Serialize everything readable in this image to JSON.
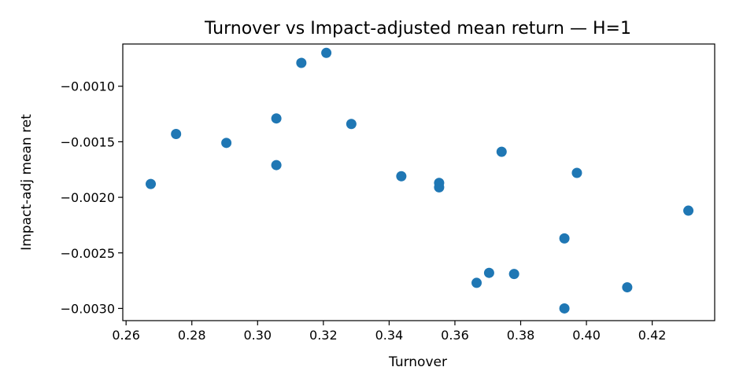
{
  "chart_data": {
    "type": "scatter",
    "title": "Turnover vs Impact-adjusted mean return — H=1",
    "xlabel": "Turnover",
    "ylabel": "Impact-adj mean ret",
    "xlim": [
      0.259,
      0.439
    ],
    "ylim": [
      -0.00311,
      -0.00062
    ],
    "xticks": [
      {
        "value": 0.26,
        "label": "0.26"
      },
      {
        "value": 0.28,
        "label": "0.28"
      },
      {
        "value": 0.3,
        "label": "0.30"
      },
      {
        "value": 0.32,
        "label": "0.32"
      },
      {
        "value": 0.34,
        "label": "0.34"
      },
      {
        "value": 0.36,
        "label": "0.36"
      },
      {
        "value": 0.38,
        "label": "0.38"
      },
      {
        "value": 0.4,
        "label": "0.40"
      },
      {
        "value": 0.42,
        "label": "0.42"
      }
    ],
    "yticks": [
      {
        "value": -0.001,
        "label": "−0.0010"
      },
      {
        "value": -0.0015,
        "label": "−0.0015"
      },
      {
        "value": -0.002,
        "label": "−0.0020"
      },
      {
        "value": -0.0025,
        "label": "−0.0025"
      },
      {
        "value": -0.003,
        "label": "−0.0030"
      }
    ],
    "grid": false,
    "marker_color": "#1f77b4",
    "points": [
      {
        "x": 0.2675,
        "y": -0.00188
      },
      {
        "x": 0.2752,
        "y": -0.00143
      },
      {
        "x": 0.2905,
        "y": -0.00151
      },
      {
        "x": 0.3057,
        "y": -0.00129
      },
      {
        "x": 0.3057,
        "y": -0.00171
      },
      {
        "x": 0.3133,
        "y": -0.00079
      },
      {
        "x": 0.3209,
        "y": -0.0007
      },
      {
        "x": 0.3285,
        "y": -0.00134
      },
      {
        "x": 0.3437,
        "y": -0.00181
      },
      {
        "x": 0.3552,
        "y": -0.00187
      },
      {
        "x": 0.3552,
        "y": -0.00191
      },
      {
        "x": 0.3666,
        "y": -0.00277
      },
      {
        "x": 0.3704,
        "y": -0.00268
      },
      {
        "x": 0.3742,
        "y": -0.00159
      },
      {
        "x": 0.378,
        "y": -0.00269
      },
      {
        "x": 0.3933,
        "y": -0.00237
      },
      {
        "x": 0.3933,
        "y": -0.003
      },
      {
        "x": 0.3971,
        "y": -0.00178
      },
      {
        "x": 0.4124,
        "y": -0.00281
      },
      {
        "x": 0.431,
        "y": -0.00212
      }
    ]
  }
}
